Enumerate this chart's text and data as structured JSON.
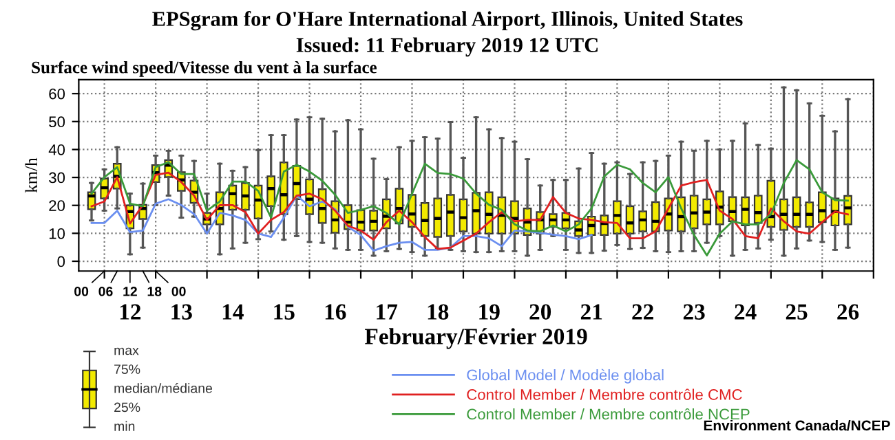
{
  "chart_data": {
    "type": "box",
    "title": "EPSgram for O'Hare International Airport, Illinois, United States",
    "subtitle": "Issued: 11 February 2019 12 UTC",
    "xlabel": "February/Février 2019",
    "ylabel": "km/h",
    "x": [
      11.75,
      12.0,
      12.25,
      12.5,
      12.75,
      13.0,
      13.25,
      13.5,
      13.75,
      14.0,
      14.25,
      14.5,
      14.75,
      15.0,
      15.25,
      15.5,
      15.75,
      16.0,
      16.25,
      16.5,
      16.75,
      17.0,
      17.25,
      17.5,
      17.75,
      18.0,
      18.25,
      18.5,
      18.75,
      19.0,
      19.25,
      19.5,
      19.75,
      20.0,
      20.25,
      20.5,
      20.75,
      21.0,
      21.25,
      21.5,
      21.75,
      22.0,
      22.25,
      22.5,
      22.75,
      23.0,
      23.25,
      23.5,
      23.75,
      24.0,
      24.25,
      24.5,
      24.75,
      25.0,
      25.25,
      25.5,
      25.75,
      26.0,
      26.25,
      26.5
    ],
    "boxes": [
      {
        "low": 14.6,
        "q1": 18.6,
        "median": 23.4,
        "q3": 24.7,
        "high": 28
      },
      {
        "low": 18.1,
        "q1": 22.5,
        "median": 26.3,
        "q3": 29.6,
        "high": 32.9
      },
      {
        "low": 18.9,
        "q1": 26,
        "median": 30.4,
        "q3": 34.9,
        "high": 40.8
      },
      {
        "low": 2.5,
        "q1": 11.8,
        "median": 17.8,
        "q3": 20,
        "high": 24.2
      },
      {
        "low": 4.9,
        "q1": 15.1,
        "median": 18.9,
        "q3": 20.2,
        "high": 27.8
      },
      {
        "low": 20.1,
        "q1": 28.3,
        "median": 31.7,
        "q3": 34.4,
        "high": 37.8
      },
      {
        "low": 23.5,
        "q1": 30.1,
        "median": 34.4,
        "q3": 36.2,
        "high": 39.5
      },
      {
        "low": 15.6,
        "q1": 25.2,
        "median": 29.1,
        "q3": 31.9,
        "high": 37.8
      },
      {
        "low": 16,
        "q1": 20.9,
        "median": 24.7,
        "q3": 28.9,
        "high": 35.9
      },
      {
        "low": 10.7,
        "q1": 13.2,
        "median": 15.1,
        "q3": 17.3,
        "high": 24.2
      },
      {
        "low": 2.5,
        "q1": 13.2,
        "median": 18.9,
        "q3": 24.7,
        "high": 34.9
      },
      {
        "low": 4.6,
        "q1": 18.4,
        "median": 24.2,
        "q3": 27.1,
        "high": 32.4
      },
      {
        "low": 6.6,
        "q1": 18.4,
        "median": 23.4,
        "q3": 28,
        "high": 33.7
      },
      {
        "low": 7.9,
        "q1": 15.3,
        "median": 21.9,
        "q3": 27.1,
        "high": 39.8
      },
      {
        "low": 10.7,
        "q1": 19.7,
        "median": 26,
        "q3": 30.4,
        "high": 45.1
      },
      {
        "low": 7.7,
        "q1": 16.8,
        "median": 23.8,
        "q3": 35.4,
        "high": 45.1
      },
      {
        "low": 9,
        "q1": 22.2,
        "median": 27.8,
        "q3": 34.2,
        "high": 50.7
      },
      {
        "low": 6.9,
        "q1": 16.8,
        "median": 22.2,
        "q3": 29.3,
        "high": 51.5
      },
      {
        "low": 6.6,
        "q1": 13.7,
        "median": 18.9,
        "q3": 25.8,
        "high": 51
      },
      {
        "low": 4.6,
        "q1": 10.2,
        "median": 14.8,
        "q3": 21.5,
        "high": 46.5
      },
      {
        "low": 4.1,
        "q1": 11.5,
        "median": 14,
        "q3": 20.1,
        "high": 50.5
      },
      {
        "low": 4.1,
        "q1": 11,
        "median": 14,
        "q3": 18.3,
        "high": 47.2
      },
      {
        "low": 2,
        "q1": 11,
        "median": 14.3,
        "q3": 18.1,
        "high": 36.7
      },
      {
        "low": 3.6,
        "q1": 11.8,
        "median": 16.1,
        "q3": 22.2,
        "high": 29.4
      },
      {
        "low": 4.4,
        "q1": 13.5,
        "median": 18.9,
        "q3": 26,
        "high": 40.8
      },
      {
        "low": 3.3,
        "q1": 12.3,
        "median": 16.9,
        "q3": 23.8,
        "high": 43.1
      },
      {
        "low": 2,
        "q1": 9,
        "median": 14.6,
        "q3": 20.9,
        "high": 44.4
      },
      {
        "low": 4.4,
        "q1": 8.7,
        "median": 15.3,
        "q3": 22.5,
        "high": 43.9
      },
      {
        "low": 4.1,
        "q1": 9,
        "median": 17.6,
        "q3": 23.8,
        "high": 49.8
      },
      {
        "low": 3.6,
        "q1": 10.7,
        "median": 15.6,
        "q3": 22.2,
        "high": 37
      },
      {
        "low": 3.3,
        "q1": 9.9,
        "median": 18.1,
        "q3": 24.5,
        "high": 51.5
      },
      {
        "low": 3.3,
        "q1": 9.9,
        "median": 16.8,
        "q3": 24.7,
        "high": 47.2
      },
      {
        "low": 3.6,
        "q1": 9.9,
        "median": 16.4,
        "q3": 22.9,
        "high": 44.1
      },
      {
        "low": 3.6,
        "q1": 9.9,
        "median": 15.3,
        "q3": 21.5,
        "high": 42.8
      },
      {
        "low": 2,
        "q1": 9.4,
        "median": 14,
        "q3": 18.9,
        "high": 36.5
      },
      {
        "low": 4.1,
        "q1": 9.9,
        "median": 14.8,
        "q3": 17.6,
        "high": 27.1
      },
      {
        "low": 9,
        "q1": 12.3,
        "median": 14.8,
        "q3": 16.9,
        "high": 29.1
      },
      {
        "low": 4.1,
        "q1": 11.8,
        "median": 14.8,
        "q3": 17.3,
        "high": 29.1
      },
      {
        "low": 3,
        "q1": 9,
        "median": 11.2,
        "q3": 14.3,
        "high": 33.2
      },
      {
        "low": 3,
        "q1": 9.4,
        "median": 12.8,
        "q3": 16,
        "high": 38.7
      },
      {
        "low": 3.8,
        "q1": 9.4,
        "median": 13.5,
        "q3": 16.4,
        "high": 34.9
      },
      {
        "low": 5.8,
        "q1": 9.9,
        "median": 16.4,
        "q3": 21.5,
        "high": 35.4
      },
      {
        "low": 4.4,
        "q1": 9.9,
        "median": 13.7,
        "q3": 19.7,
        "high": 31.2
      },
      {
        "low": 4.8,
        "q1": 10.7,
        "median": 14.8,
        "q3": 17.9,
        "high": 35.4
      },
      {
        "low": 3.6,
        "q1": 10.7,
        "median": 14.3,
        "q3": 21.2,
        "high": 35.9
      },
      {
        "low": 3.3,
        "q1": 11,
        "median": 16.9,
        "q3": 22.5,
        "high": 37.8
      },
      {
        "low": 3.6,
        "q1": 10.7,
        "median": 16,
        "q3": 22.9,
        "high": 42.8
      },
      {
        "low": 3.6,
        "q1": 11.8,
        "median": 17.3,
        "q3": 23.5,
        "high": 39.5
      },
      {
        "low": 6.6,
        "q1": 13.2,
        "median": 17.6,
        "q3": 22.2,
        "high": 43.1
      },
      {
        "low": 9,
        "q1": 13.2,
        "median": 19.4,
        "q3": 25,
        "high": 40
      },
      {
        "low": 2,
        "q1": 14.3,
        "median": 17.8,
        "q3": 23,
        "high": 43.1
      },
      {
        "low": 4.1,
        "q1": 12.8,
        "median": 18.6,
        "q3": 22.9,
        "high": 49.3
      },
      {
        "low": 4.6,
        "q1": 13.7,
        "median": 17.4,
        "q3": 23.5,
        "high": 41.6
      },
      {
        "low": 7.7,
        "q1": 12.3,
        "median": 16,
        "q3": 28.8,
        "high": 40.3
      },
      {
        "low": 2,
        "q1": 11.2,
        "median": 16.8,
        "q3": 22.2,
        "high": 62.2
      },
      {
        "low": 4.6,
        "q1": 12.3,
        "median": 16.8,
        "q3": 22.9,
        "high": 61.2
      },
      {
        "low": 7.4,
        "q1": 12.3,
        "median": 16.8,
        "q3": 21.1,
        "high": 56.5
      },
      {
        "low": 6.9,
        "q1": 14,
        "median": 18.1,
        "q3": 24.7,
        "high": 52.1
      },
      {
        "low": 4.1,
        "q1": 12.8,
        "median": 17.8,
        "q3": 22.5,
        "high": 46.5
      },
      {
        "low": 4.9,
        "q1": 13.2,
        "median": 19.1,
        "q3": 23.4,
        "high": 58
      }
    ],
    "color": "#f2ea00",
    "series": [
      {
        "type": "line",
        "name": "Global Model / Modèle global",
        "color": "#6b8ff0",
        "values": [
          13.7,
          13.7,
          18.1,
          10.4,
          11,
          20.6,
          22.2,
          20.1,
          16.9,
          9.9,
          17.3,
          16.4,
          14.8,
          9.9,
          8.7,
          15.6,
          23.5,
          19.7,
          21.4,
          18.6,
          12.3,
          9.4,
          3.8,
          5.4,
          6.6,
          6.9,
          4.1,
          4.1,
          4.9,
          9,
          9,
          8.2,
          5.4,
          11,
          10.7,
          10.2,
          9.5,
          9,
          7.9,
          9.4,
          null,
          null,
          null,
          null,
          null,
          null,
          null,
          null,
          null,
          null,
          null,
          null,
          null,
          null,
          null,
          null,
          null,
          null,
          null,
          null
        ]
      },
      {
        "type": "line",
        "name": "Control Member / Membre contrôle CMC",
        "color": "#e02020",
        "values": [
          19.7,
          21.4,
          30.1,
          13.5,
          20.2,
          30.9,
          31.7,
          28.3,
          23.5,
          14.8,
          20.1,
          20.1,
          17.6,
          9.9,
          14.8,
          17.6,
          23.5,
          24.2,
          22.2,
          18.1,
          12.7,
          11,
          7.7,
          14,
          18.1,
          14,
          8.7,
          4.4,
          4.9,
          7.4,
          9.9,
          14,
          17.6,
          14.3,
          14.8,
          14.8,
          23,
          17.3,
          15.3,
          14.8,
          14,
          13.7,
          8.2,
          8.2,
          10.7,
          18.9,
          27.1,
          28.3,
          29.1,
          18.1,
          15.1,
          9,
          8.2,
          18.9,
          14.3,
          10.7,
          9.9,
          14,
          17.8,
          16.8
        ]
      },
      {
        "type": "line",
        "name": "Control Member / Membre contrôle NCEP",
        "color": "#3a9a3a",
        "values": [
          24.2,
          30.1,
          33.7,
          20.6,
          19.7,
          33.7,
          35.4,
          31.2,
          31.2,
          18.1,
          21.4,
          28.5,
          28.5,
          25.2,
          15.6,
          32.1,
          34.5,
          32.1,
          28.8,
          23.8,
          17.3,
          18.4,
          19.7,
          17.3,
          13.2,
          24.2,
          34.9,
          31.6,
          31.2,
          29.6,
          24.2,
          20.2,
          18.4,
          13.2,
          11,
          10.7,
          12.8,
          10.7,
          13.2,
          18.9,
          30.4,
          34.5,
          32.9,
          28,
          24.7,
          30.1,
          18.9,
          9.4,
          2.1,
          9.9,
          14.3,
          13.2,
          13.2,
          16.8,
          28,
          36.2,
          32.9,
          24.7,
          21.9,
          21.7
        ]
      }
    ],
    "xlim": [
      11.5,
      27.0
    ],
    "xticks": [
      {
        "value": 12.0,
        "label": null
      },
      {
        "value": 13.0,
        "label": null
      },
      {
        "value": 14.0,
        "label": null
      },
      {
        "value": 15.0,
        "label": null
      },
      {
        "value": 16.0,
        "label": null
      },
      {
        "value": 17.0,
        "label": null
      },
      {
        "value": 18.0,
        "label": null
      },
      {
        "value": 19.0,
        "label": null
      },
      {
        "value": 20.0,
        "label": null
      },
      {
        "value": 21.0,
        "label": null
      },
      {
        "value": 22.0,
        "label": null
      },
      {
        "value": 23.0,
        "label": null
      },
      {
        "value": 24.0,
        "label": null
      },
      {
        "value": 25.0,
        "label": null
      },
      {
        "value": 26.0,
        "label": null
      },
      {
        "value": 27.0,
        "label": null
      },
      {
        "value": 12.5,
        "label": "12"
      },
      {
        "value": 13.5,
        "label": "13"
      },
      {
        "value": 14.5,
        "label": "14"
      },
      {
        "value": 15.5,
        "label": "15"
      },
      {
        "value": 16.5,
        "label": "16"
      },
      {
        "value": 17.5,
        "label": "17"
      },
      {
        "value": 18.5,
        "label": "18"
      },
      {
        "value": 19.5,
        "label": "19"
      },
      {
        "value": 20.5,
        "label": "20"
      },
      {
        "value": 21.5,
        "label": "21"
      },
      {
        "value": 22.5,
        "label": "22"
      },
      {
        "value": 23.5,
        "label": "23"
      },
      {
        "value": 24.5,
        "label": "24"
      },
      {
        "value": 25.5,
        "label": "25"
      },
      {
        "value": 26.5,
        "label": "26"
      }
    ],
    "ylim": [
      -3.5,
      65
    ],
    "yticks": [
      0,
      10,
      20,
      30,
      40,
      50,
      60
    ],
    "grid": true,
    "legend": "bottom",
    "annotations": [
      "Surface wind speed/Vitesse du vent à la surface",
      "00",
      "06",
      "12",
      "18",
      "00",
      "max",
      "75%",
      "median/médiane",
      "25%",
      "min",
      "Environment Canada/NCEP"
    ]
  }
}
